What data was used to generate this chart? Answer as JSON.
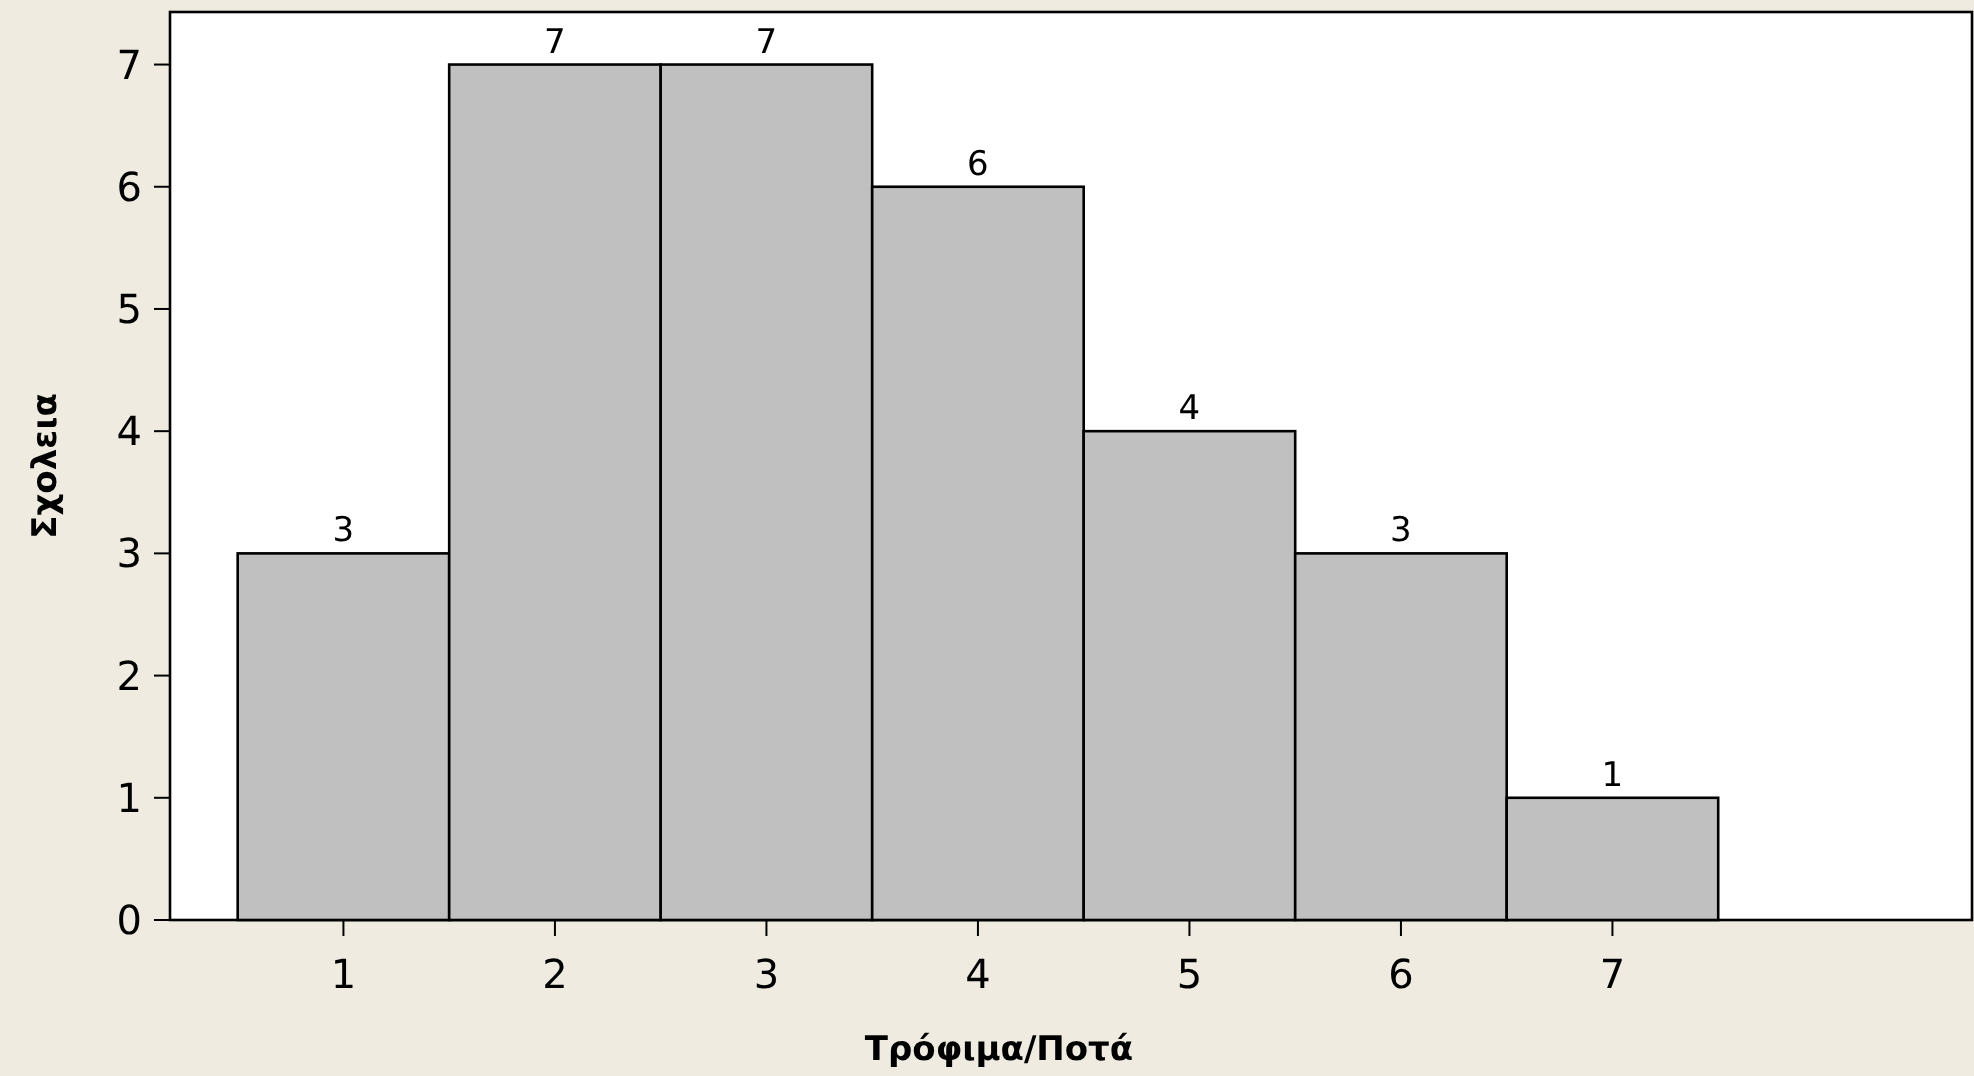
{
  "chart_data": {
    "type": "histogram",
    "xlabel": "Τρόφιμα/Ποτά",
    "ylabel": "Σχολεια",
    "bins": [
      0.5,
      1.5,
      2.5,
      3.5,
      4.5,
      5.5,
      6.5,
      7.5
    ],
    "values": [
      3,
      7,
      7,
      6,
      4,
      3,
      1
    ],
    "color": "#c0c0c0",
    "xlim": [
      0.18,
      8.7
    ],
    "xticks": [
      1,
      2,
      3,
      4,
      5,
      6,
      7
    ],
    "ylim": [
      0,
      7.43
    ],
    "yticks": [
      0,
      1,
      2,
      3,
      4,
      5,
      6,
      7
    ],
    "data_labels": true,
    "grid": false
  }
}
